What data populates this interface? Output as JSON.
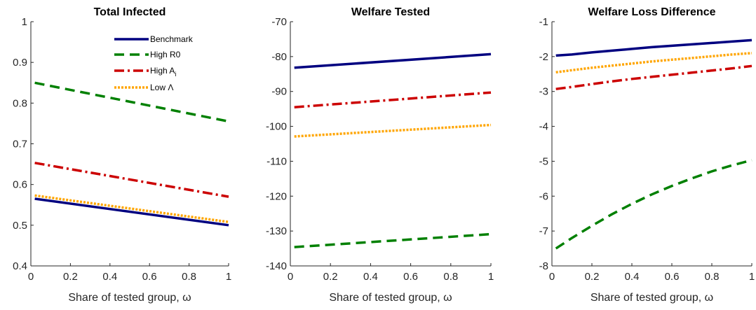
{
  "series_styles": [
    {
      "name": "Benchmark",
      "color": "#000080",
      "dash": "solid"
    },
    {
      "name": "High R0",
      "color": "#008000",
      "dash": "dashed"
    },
    {
      "name": "High A_i",
      "color": "#cc0000",
      "dash": "dashdot"
    },
    {
      "name": "Low Λ",
      "color": "#ffa500",
      "dash": "dotted"
    }
  ],
  "legend": {
    "placement": "top-right",
    "entries": [
      {
        "label": "Benchmark"
      },
      {
        "label": "High A",
        "subscript": "i"
      },
      {
        "label": "High R0"
      },
      {
        "label": "Low Λ"
      }
    ]
  },
  "chart_data": [
    {
      "type": "line",
      "title": "Total Infected",
      "xlabel": "Share of tested group, ω",
      "xlim": [
        0,
        1
      ],
      "ylim": [
        0.4,
        1
      ],
      "xticks": [
        "0",
        "0.2",
        "0.4",
        "0.6",
        "0.8",
        "1"
      ],
      "yticks": [
        "0.4",
        "0.5",
        "0.6",
        "0.7",
        "0.8",
        "0.9",
        "1"
      ],
      "legend_shown": true,
      "x": [
        0.02,
        1
      ],
      "series": [
        {
          "name": "Benchmark",
          "values": [
            0.565,
            0.5
          ]
        },
        {
          "name": "High R0",
          "values": [
            0.85,
            0.755
          ]
        },
        {
          "name": "High A_i",
          "values": [
            0.653,
            0.57
          ]
        },
        {
          "name": "Low Λ",
          "values": [
            0.573,
            0.508
          ]
        }
      ]
    },
    {
      "type": "line",
      "title": "Welfare Tested",
      "xlabel": "Share of tested group, ω",
      "xlim": [
        0,
        1
      ],
      "ylim": [
        -140,
        -70
      ],
      "xticks": [
        "0",
        "0.2",
        "0.4",
        "0.6",
        "0.8",
        "1"
      ],
      "yticks": [
        "-140",
        "-130",
        "-120",
        "-110",
        "-100",
        "-90",
        "-80",
        "-70"
      ],
      "legend_shown": false,
      "x": [
        0.02,
        1
      ],
      "series": [
        {
          "name": "Benchmark",
          "values": [
            -83.2,
            -79.3
          ]
        },
        {
          "name": "High R0",
          "values": [
            -134.6,
            -130.9
          ]
        },
        {
          "name": "High A_i",
          "values": [
            -94.5,
            -90.3
          ]
        },
        {
          "name": "Low Λ",
          "values": [
            -102.9,
            -99.6
          ]
        }
      ]
    },
    {
      "type": "line",
      "title": "Welfare Loss Difference",
      "xlabel": "Share of tested group, ω",
      "xlim": [
        0,
        1
      ],
      "ylim": [
        -8,
        -1
      ],
      "xticks": [
        "0",
        "0.2",
        "0.4",
        "0.6",
        "0.8",
        "1"
      ],
      "yticks": [
        "-8",
        "-7",
        "-6",
        "-5",
        "-4",
        "-3",
        "-2",
        "-1"
      ],
      "legend_shown": false,
      "x": [
        0.02,
        0.1,
        0.2,
        0.3,
        0.4,
        0.5,
        0.6,
        0.7,
        0.8,
        0.9,
        1
      ],
      "series": [
        {
          "name": "Benchmark",
          "values": [
            -1.97,
            -1.94,
            -1.88,
            -1.83,
            -1.78,
            -1.73,
            -1.69,
            -1.65,
            -1.61,
            -1.57,
            -1.53
          ]
        },
        {
          "name": "High R0",
          "values": [
            -7.5,
            -7.2,
            -6.85,
            -6.52,
            -6.22,
            -5.95,
            -5.71,
            -5.49,
            -5.29,
            -5.12,
            -4.97
          ]
        },
        {
          "name": "High A_i",
          "values": [
            -2.93,
            -2.87,
            -2.79,
            -2.71,
            -2.64,
            -2.58,
            -2.52,
            -2.46,
            -2.4,
            -2.34,
            -2.27
          ]
        },
        {
          "name": "Low Λ",
          "values": [
            -2.45,
            -2.39,
            -2.32,
            -2.26,
            -2.2,
            -2.14,
            -2.09,
            -2.04,
            -1.99,
            -1.94,
            -1.9
          ]
        }
      ]
    }
  ]
}
